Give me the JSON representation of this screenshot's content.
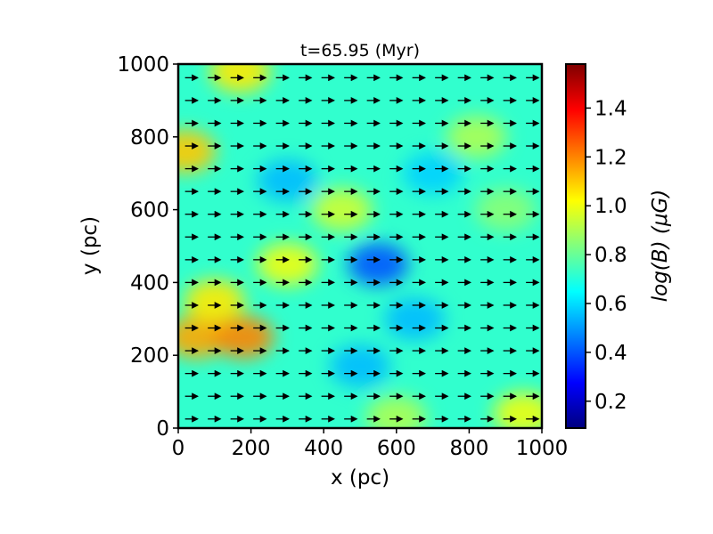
{
  "chart_data": {
    "type": "heatmap",
    "title": "t=65.95 (Myr)",
    "xlabel": "x (pc)",
    "ylabel": "y (pc)",
    "xlim": [
      0,
      1000
    ],
    "ylim": [
      0,
      1000
    ],
    "x_ticks": [
      "0",
      "200",
      "400",
      "600",
      "800",
      "1000"
    ],
    "y_ticks": [
      "0",
      "200",
      "400",
      "600",
      "800",
      "1000"
    ],
    "x_tick_values": [
      0,
      200,
      400,
      600,
      800,
      1000
    ],
    "y_tick_values": [
      0,
      200,
      400,
      600,
      800,
      1000
    ],
    "colormap": "jet",
    "colorbar": {
      "label": "log(B) (μG)",
      "range": [
        0.09,
        1.58
      ],
      "ticks": [
        "0.2",
        "0.4",
        "0.6",
        "0.8",
        "1.0",
        "1.2",
        "1.4"
      ],
      "tick_values": [
        0.2,
        0.4,
        0.6,
        0.8,
        1.0,
        1.2,
        1.4
      ]
    },
    "field_description": "magnetic field strength map with overlaid field-direction arrows pointing mostly in +x direction",
    "arrows": {
      "direction": "+x",
      "grid_spacing_pc": 62.5
    },
    "dominant_value": 0.72,
    "features": [
      {
        "x": 50,
        "y": 250,
        "value": 1.15
      },
      {
        "x": 100,
        "y": 350,
        "value": 1.05
      },
      {
        "x": 180,
        "y": 250,
        "value": 1.2
      },
      {
        "x": 300,
        "y": 450,
        "value": 1.0
      },
      {
        "x": 450,
        "y": 600,
        "value": 0.95
      },
      {
        "x": 550,
        "y": 450,
        "value": 0.4
      },
      {
        "x": 300,
        "y": 680,
        "value": 0.55
      },
      {
        "x": 500,
        "y": 170,
        "value": 0.55
      },
      {
        "x": 650,
        "y": 300,
        "value": 0.55
      },
      {
        "x": 700,
        "y": 700,
        "value": 0.58
      },
      {
        "x": 820,
        "y": 800,
        "value": 0.9
      },
      {
        "x": 900,
        "y": 600,
        "value": 0.85
      },
      {
        "x": 20,
        "y": 760,
        "value": 1.1
      },
      {
        "x": 170,
        "y": 980,
        "value": 1.05
      },
      {
        "x": 950,
        "y": 40,
        "value": 1.0
      },
      {
        "x": 600,
        "y": 30,
        "value": 0.9
      }
    ]
  }
}
